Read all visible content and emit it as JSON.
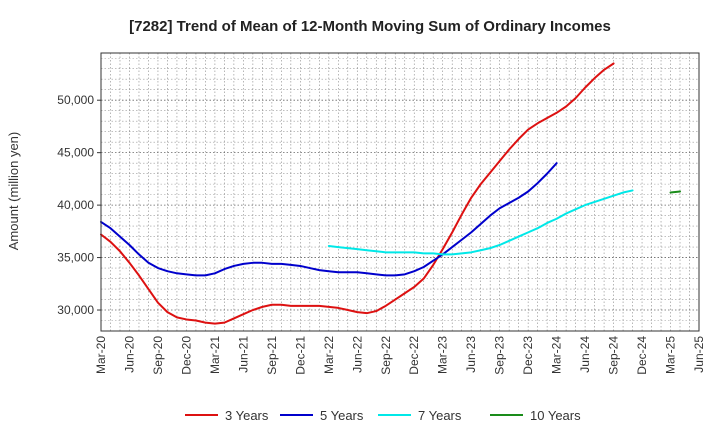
{
  "chart_data": {
    "type": "line",
    "title": "[7282]  Trend of Mean of 12-Month Moving Sum of Ordinary Incomes",
    "xlabel": "",
    "ylabel": "Amount (million yen)",
    "ylim": [
      28000,
      54500
    ],
    "yticks": [
      30000,
      35000,
      40000,
      45000,
      50000
    ],
    "ytick_labels": [
      "30,000",
      "35,000",
      "40,000",
      "45,000",
      "50,000"
    ],
    "x_tick_labels": [
      "Mar-20",
      "Jun-20",
      "Sep-20",
      "Dec-20",
      "Mar-21",
      "Jun-21",
      "Sep-21",
      "Dec-21",
      "Mar-22",
      "Jun-22",
      "Sep-22",
      "Dec-22",
      "Mar-23",
      "Jun-23",
      "Sep-23",
      "Dec-23",
      "Mar-24",
      "Jun-24",
      "Sep-24",
      "Dec-24",
      "Mar-25",
      "Jun-25"
    ],
    "x_months_total": 63,
    "grid": true,
    "legend_position": "bottom",
    "series": [
      {
        "name": "3 Years",
        "color": "#dd1111",
        "start_month": 0,
        "values": [
          37200,
          36500,
          35600,
          34500,
          33300,
          32000,
          30700,
          29800,
          29300,
          29100,
          29000,
          28800,
          28700,
          28800,
          29200,
          29600,
          30000,
          30300,
          30500,
          30500,
          30400,
          30400,
          30400,
          30400,
          30300,
          30200,
          30000,
          29800,
          29700,
          29900,
          30400,
          31000,
          31600,
          32200,
          33000,
          34300,
          35800,
          37400,
          39100,
          40700,
          42000,
          43100,
          44200,
          45300,
          46300,
          47200,
          47800,
          48300,
          48800,
          49400,
          50200,
          51200,
          52100,
          52900,
          53500
        ]
      },
      {
        "name": "5 Years",
        "color": "#0000cc",
        "start_month": 0,
        "values": [
          38400,
          37800,
          37000,
          36200,
          35300,
          34500,
          34000,
          33700,
          33500,
          33400,
          33300,
          33300,
          33500,
          33900,
          34200,
          34400,
          34500,
          34500,
          34400,
          34400,
          34300,
          34200,
          34000,
          33800,
          33700,
          33600,
          33600,
          33600,
          33500,
          33400,
          33300,
          33300,
          33400,
          33700,
          34100,
          34700,
          35300,
          36000,
          36700,
          37400,
          38200,
          39000,
          39700,
          40200,
          40700,
          41300,
          42100,
          43000,
          44000
        ]
      },
      {
        "name": "7 Years",
        "color": "#00e8e8",
        "start_month": 24,
        "values": [
          36100,
          36000,
          35900,
          35800,
          35700,
          35600,
          35500,
          35500,
          35500,
          35500,
          35400,
          35400,
          35300,
          35300,
          35400,
          35500,
          35700,
          35900,
          36200,
          36600,
          37000,
          37400,
          37800,
          38300,
          38700,
          39200,
          39600,
          40000,
          40300,
          40600,
          40900,
          41200,
          41400
        ]
      },
      {
        "name": "10 Years",
        "color": "#1a8c1a",
        "start_month": 60,
        "values": [
          41200,
          41300
        ]
      }
    ]
  }
}
